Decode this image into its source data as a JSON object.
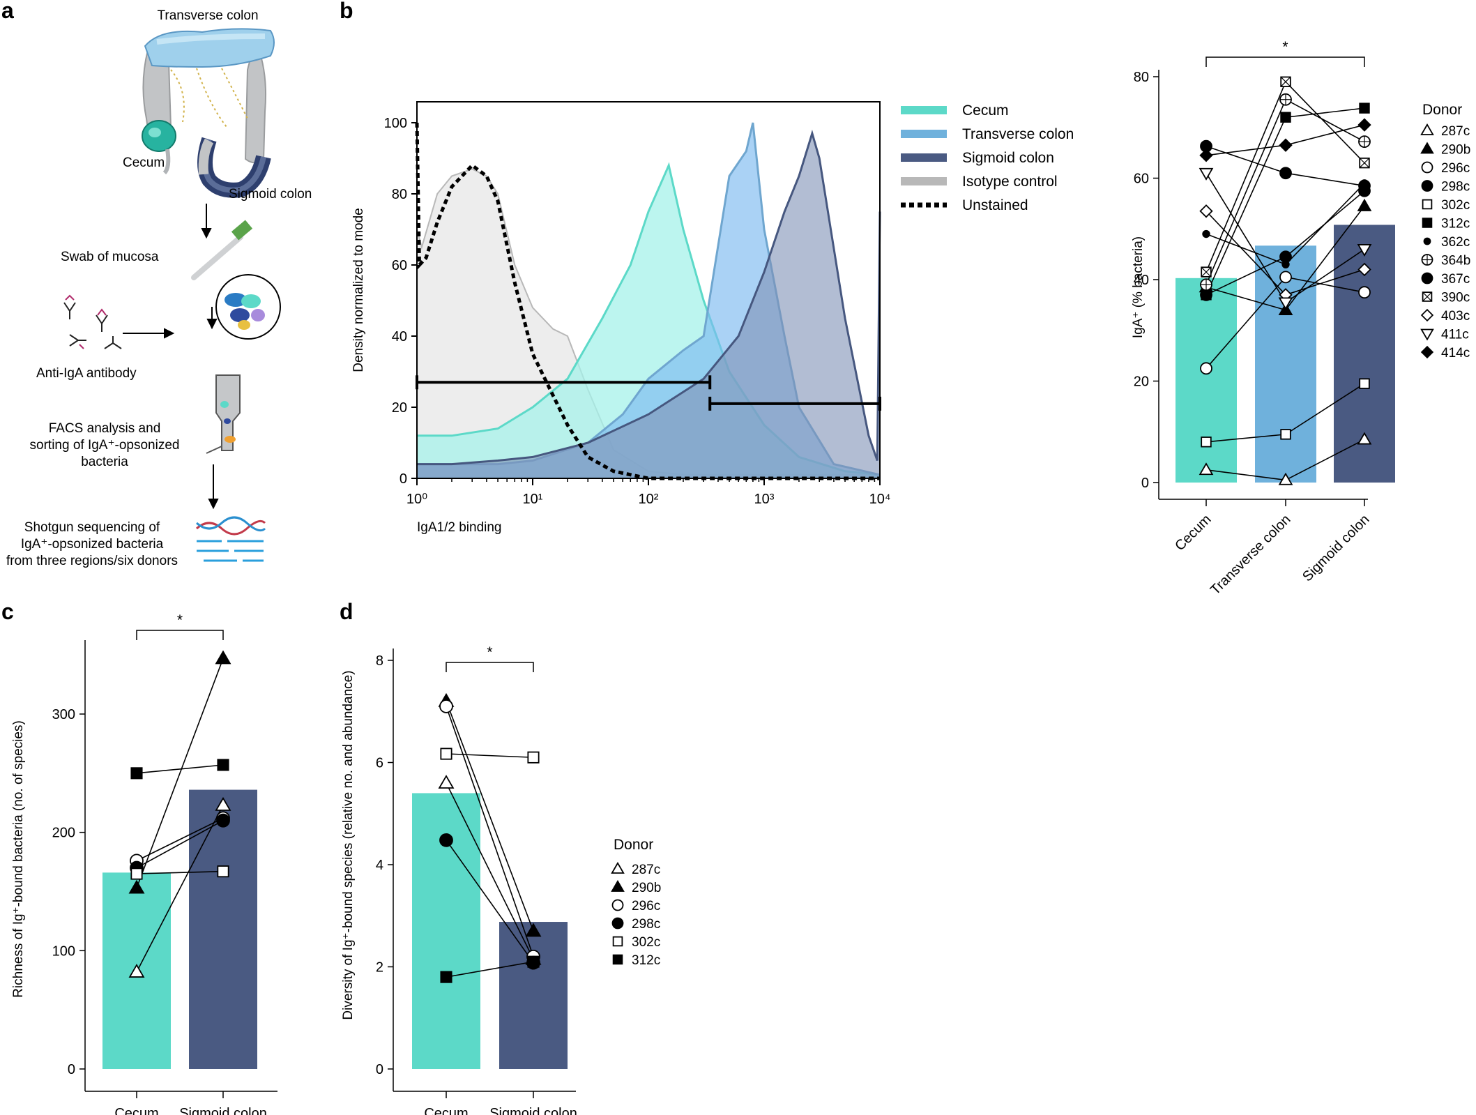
{
  "panel_labels": {
    "a": "a",
    "b": "b",
    "c": "c",
    "d": "d"
  },
  "schematic": {
    "transverse_colon": "Transverse colon",
    "cecum": "Cecum",
    "sigmoid_colon": "Sigmoid colon",
    "swab": "Swab of mucosa",
    "antibody": "Anti-IgA antibody",
    "facs_line1": "FACS analysis and",
    "facs_line2": "sorting of IgA⁺-opsonized",
    "facs_line3": "bacteria",
    "seq_line1": "Shotgun sequencing of",
    "seq_line2": "IgA⁺-opsonized bacteria",
    "seq_line3": "from three regions/six donors"
  },
  "colors": {
    "cecum": "#5cd9c8",
    "transverse": "#6fb1dc",
    "sigmoid": "#4a5a82",
    "isotype": "#b8b8b8"
  },
  "chart_data": [
    {
      "id": "b-histogram",
      "type": "area",
      "xlabel": "IgA1/2 binding",
      "ylabel": "Density normalized to mode",
      "xscale": "log",
      "xlim": [
        1,
        10000
      ],
      "ylim": [
        0,
        100
      ],
      "xticks": [
        "10⁰",
        "10¹",
        "10²",
        "10³",
        "10⁴"
      ],
      "yticks": [
        "0",
        "20",
        "40",
        "60",
        "80",
        "100"
      ],
      "legend_position": "right",
      "series": [
        {
          "name": "Cecum",
          "x": [
            1,
            1.2,
            2,
            5,
            10,
            20,
            40,
            70,
            100,
            150,
            200,
            300,
            500,
            1000,
            2000,
            5000,
            10000
          ],
          "y": [
            12,
            12,
            12,
            14,
            20,
            28,
            45,
            60,
            75,
            88,
            70,
            50,
            30,
            15,
            6,
            2,
            1
          ]
        },
        {
          "name": "Transverse colon",
          "x": [
            1,
            1.2,
            2,
            5,
            10,
            30,
            60,
            100,
            200,
            300,
            500,
            700,
            800,
            1000,
            1500,
            2000,
            4000,
            10000
          ],
          "y": [
            4,
            4,
            4,
            4,
            5,
            10,
            18,
            28,
            36,
            40,
            85,
            92,
            100,
            70,
            40,
            20,
            4,
            1
          ]
        },
        {
          "name": "Sigmoid colon",
          "x": [
            1,
            1.2,
            2,
            5,
            10,
            30,
            100,
            300,
            600,
            1000,
            1500,
            2000,
            2600,
            3000,
            5000,
            8000,
            9500,
            10000
          ],
          "y": [
            4,
            4,
            4,
            5,
            6,
            10,
            18,
            28,
            40,
            58,
            75,
            85,
            97,
            90,
            45,
            12,
            5,
            75
          ]
        },
        {
          "name": "Isotype control",
          "x": [
            1,
            1.1,
            1.5,
            2,
            3,
            4,
            5,
            7,
            10,
            15,
            20,
            30,
            50,
            100,
            200,
            10000
          ],
          "y": [
            70,
            65,
            80,
            85,
            87,
            85,
            80,
            60,
            48,
            42,
            40,
            25,
            8,
            2,
            1,
            1
          ]
        },
        {
          "name": "Unstained",
          "x": [
            1,
            1.05,
            1.2,
            1.5,
            2,
            3,
            4,
            5,
            7,
            10,
            20,
            30,
            50,
            100,
            10000
          ],
          "y": [
            100,
            60,
            62,
            72,
            82,
            88,
            85,
            78,
            55,
            35,
            15,
            6,
            2,
            0,
            0
          ]
        }
      ],
      "gates": [
        {
          "x_range": [
            1,
            340
          ],
          "y": 27
        },
        {
          "x_range": [
            340,
            10000
          ],
          "y": 21
        }
      ]
    },
    {
      "id": "b-bars",
      "type": "bar",
      "categories": [
        "Cecum",
        "Transverse colon",
        "Sigmoid colon"
      ],
      "values": [
        40.3,
        46.7,
        50.8
      ],
      "ylabel": "IgA⁺ (% bacteria)",
      "ylim": [
        0,
        80
      ],
      "yticks": [
        "0",
        "20",
        "40",
        "60",
        "80"
      ],
      "significance": "*",
      "legend_title": "Donor",
      "legend_position": "right",
      "donors": [
        {
          "name": "287c",
          "values": [
            2.5,
            0.5,
            8.5
          ]
        },
        {
          "name": "290b",
          "values": [
            38.5,
            34,
            54.5
          ]
        },
        {
          "name": "296c",
          "values": [
            22.5,
            40.5,
            37.5
          ]
        },
        {
          "name": "298c",
          "values": [
            37,
            44.5,
            57.5
          ]
        },
        {
          "name": "302c",
          "values": [
            8,
            9.5,
            19.5
          ]
        },
        {
          "name": "312c",
          "values": [
            37,
            72,
            73.8
          ]
        },
        {
          "name": "362c",
          "values": [
            49,
            43,
            59
          ]
        },
        {
          "name": "364b",
          "values": [
            39,
            75.5,
            67.2
          ]
        },
        {
          "name": "367c",
          "values": [
            66.3,
            61,
            58.5
          ]
        },
        {
          "name": "390c",
          "values": [
            41.5,
            79,
            63
          ]
        },
        {
          "name": "403c",
          "values": [
            53.5,
            37,
            42
          ]
        },
        {
          "name": "411c",
          "values": [
            61,
            35.5,
            46
          ]
        },
        {
          "name": "414c",
          "values": [
            64.5,
            66.5,
            70.5
          ]
        }
      ]
    },
    {
      "id": "c",
      "type": "bar",
      "categories": [
        "Cecum",
        "Sigmoid colon"
      ],
      "values": [
        166,
        236
      ],
      "ylabel": "Richness of Ig⁺-bound bacteria (no. of species)",
      "ylim": [
        0,
        360
      ],
      "yticks": [
        "0",
        "100",
        "200",
        "300"
      ],
      "significance": "*",
      "donors": [
        {
          "name": "287c",
          "values": [
            82,
            223
          ]
        },
        {
          "name": "290b",
          "values": [
            153,
            347
          ]
        },
        {
          "name": "296c",
          "values": [
            176,
            212
          ]
        },
        {
          "name": "298c",
          "values": [
            170,
            210
          ]
        },
        {
          "name": "302c",
          "values": [
            165,
            167
          ]
        },
        {
          "name": "312c",
          "values": [
            250,
            257
          ]
        }
      ]
    },
    {
      "id": "d",
      "type": "bar",
      "categories": [
        "Cecum",
        "Sigmoid colon"
      ],
      "values": [
        5.4,
        2.88
      ],
      "ylabel": "Diversity of Ig⁺-bound species (relative no. and abundance)",
      "ylim": [
        0,
        8.3
      ],
      "yticks": [
        "0",
        "2",
        "4",
        "6",
        "8"
      ],
      "significance": "*",
      "legend_title": "Donor",
      "legend_position": "right",
      "donors": [
        {
          "name": "287c",
          "values": [
            5.6,
            2.15
          ]
        },
        {
          "name": "290b",
          "values": [
            7.2,
            2.7
          ]
        },
        {
          "name": "296c",
          "values": [
            7.1,
            2.2
          ]
        },
        {
          "name": "298c",
          "values": [
            4.48,
            2.08
          ]
        },
        {
          "name": "302c",
          "values": [
            6.17,
            6.1
          ]
        },
        {
          "name": "312c",
          "values": [
            1.8,
            2.1
          ]
        }
      ]
    }
  ]
}
